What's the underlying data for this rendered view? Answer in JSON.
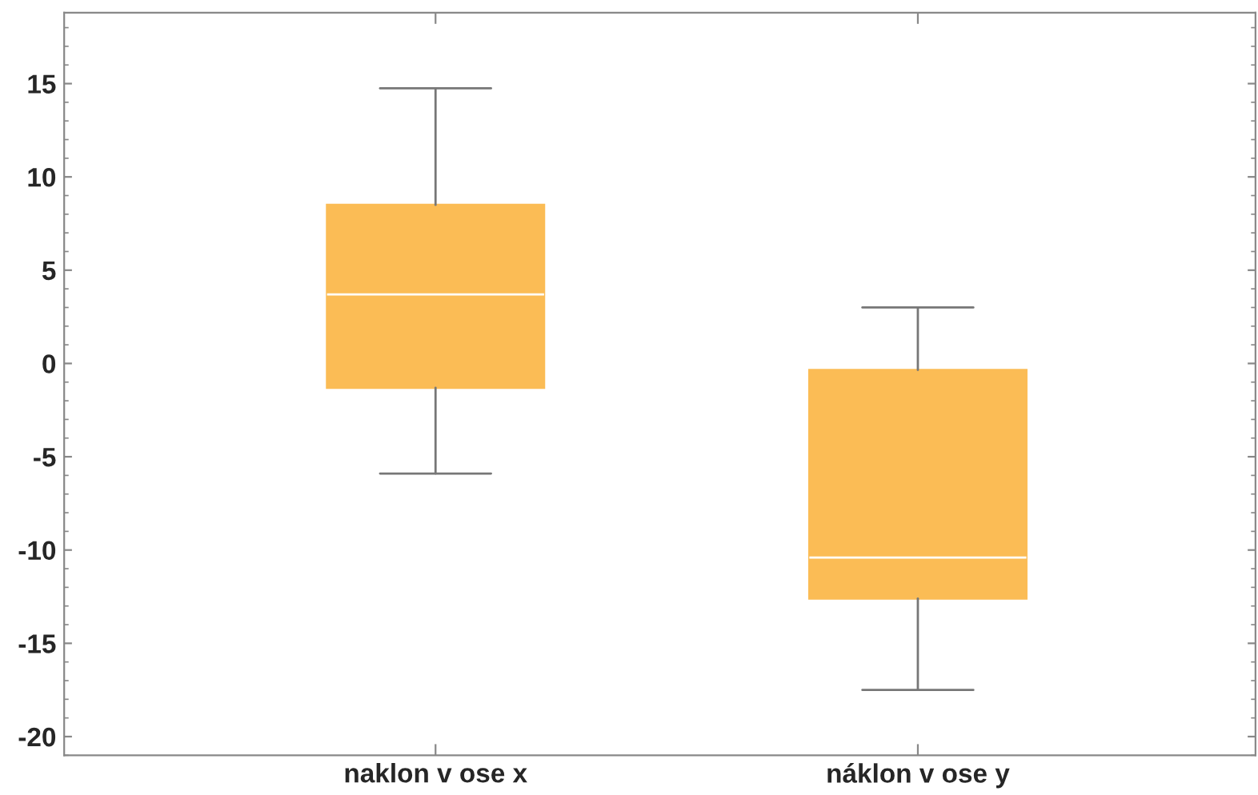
{
  "chart_data": {
    "type": "box",
    "categories": [
      "naklon v ose x",
      "náklon v ose y"
    ],
    "color": "#fbbc55",
    "boxes": [
      {
        "low": -5.9,
        "q1": -1.3,
        "median": 3.7,
        "q3": 8.5,
        "high": 14.75
      },
      {
        "low": -17.5,
        "q1": -12.6,
        "median": -10.4,
        "q3": -0.35,
        "high": 3.0
      }
    ],
    "ylim": [
      -21,
      18.8
    ],
    "yticks": [
      -20,
      -15,
      -10,
      -5,
      0,
      5,
      10,
      15
    ],
    "grid": false,
    "legend": false
  }
}
